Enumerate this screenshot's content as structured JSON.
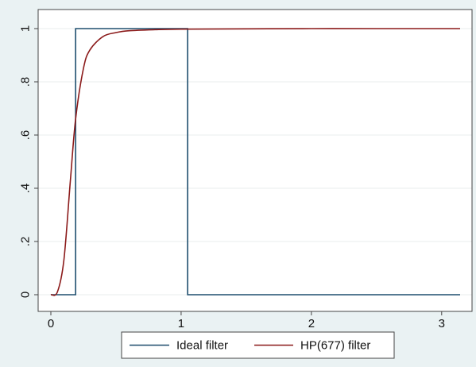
{
  "chart_data": {
    "type": "line",
    "title": "",
    "xlabel": "",
    "ylabel": "",
    "xlim": [
      0,
      3.14159
    ],
    "ylim": [
      0,
      1
    ],
    "x_ticks": [
      0,
      1,
      2,
      3
    ],
    "x_tick_labels": [
      "0",
      "1",
      "2",
      "3"
    ],
    "y_ticks": [
      0,
      0.2,
      0.4,
      0.6,
      0.8,
      1
    ],
    "y_tick_labels": [
      "0",
      ".2",
      ".4",
      ".6",
      ".8",
      "1"
    ],
    "grid": "horizontal",
    "legend_position": "bottom",
    "series": [
      {
        "name": "Ideal filter",
        "color": "#1f4e6e",
        "x": [
          0,
          0.19,
          0.19,
          1.05,
          1.05,
          3.14159
        ],
        "y": [
          0,
          0,
          1,
          1,
          0,
          0
        ]
      },
      {
        "name": "HP(677) filter",
        "color": "#8b1a1a",
        "x": [
          0,
          0.05,
          0.1,
          0.15,
          0.19,
          0.25,
          0.3,
          0.4,
          0.5,
          0.6,
          0.8,
          1.0,
          1.5,
          2.0,
          2.5,
          3.14159
        ],
        "y": [
          0,
          0.01,
          0.13,
          0.43,
          0.66,
          0.85,
          0.92,
          0.97,
          0.985,
          0.992,
          0.996,
          0.998,
          0.999,
          1.0,
          1.0,
          1.0
        ]
      }
    ]
  }
}
